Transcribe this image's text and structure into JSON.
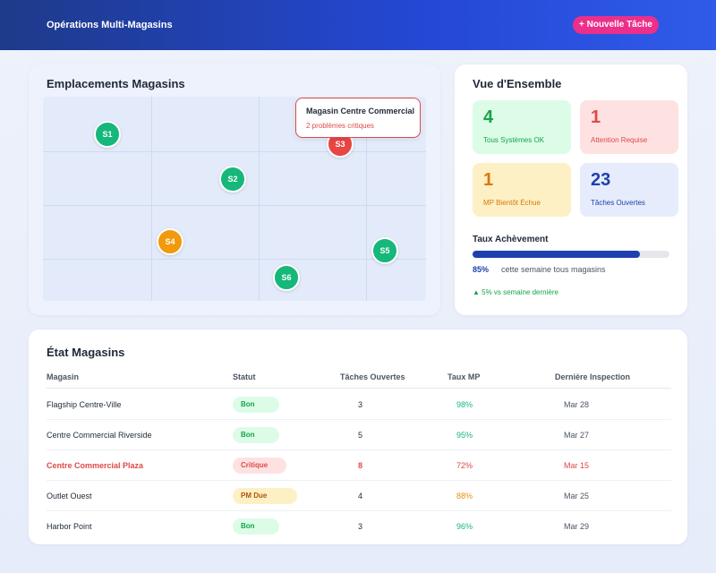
{
  "header": {
    "title": "Opérations Multi-Magasins",
    "new_task_label": "+ Nouvelle Tâche"
  },
  "map": {
    "title": "Emplacements Magasins",
    "stores": [
      {
        "id": "S1",
        "status": "good"
      },
      {
        "id": "S2",
        "status": "good"
      },
      {
        "id": "S3",
        "status": "critical"
      },
      {
        "id": "S4",
        "status": "pm_due"
      },
      {
        "id": "S5",
        "status": "good"
      },
      {
        "id": "S6",
        "status": "good"
      }
    ],
    "tooltip": {
      "title": "Magasin Centre Commercial",
      "subtitle": "2 problèmes critiques"
    }
  },
  "overview": {
    "title": "Vue d'Ensemble",
    "stats": [
      {
        "value": "4",
        "label": "Tous Systèmes OK"
      },
      {
        "value": "1",
        "label": "Attention Requise"
      },
      {
        "value": "1",
        "label": "MP Bientôt Échue"
      },
      {
        "value": "23",
        "label": "Tâches Ouvertes"
      }
    ],
    "completion": {
      "title": "Taux Achèvement",
      "percent_label": "85%",
      "fraction": 0.85,
      "description": "cette semaine tous magasins",
      "trend": "▲ 5% vs semaine dernière"
    }
  },
  "table": {
    "title": "État Magasins",
    "columns": [
      "Magasin",
      "Statut",
      "Tâches Ouvertes",
      "Taux MP",
      "Dernière Inspection"
    ],
    "rows": [
      {
        "name": "Flagship Centre-Ville",
        "status": "Bon",
        "status_type": "good",
        "tasks": "3",
        "pm_rate": "98%",
        "pm_type": "good",
        "inspection": "Mar 28",
        "highlight": false
      },
      {
        "name": "Centre Commercial Riverside",
        "status": "Bon",
        "status_type": "good",
        "tasks": "5",
        "pm_rate": "95%",
        "pm_type": "good",
        "inspection": "Mar 27",
        "highlight": false
      },
      {
        "name": "Centre Commercial Plaza",
        "status": "Critique",
        "status_type": "critical",
        "tasks": "8",
        "pm_rate": "72%",
        "pm_type": "critical",
        "inspection": "Mar 15",
        "highlight": true
      },
      {
        "name": "Outlet Ouest",
        "status": "PM Due",
        "status_type": "pm_due",
        "tasks": "4",
        "pm_rate": "88%",
        "pm_type": "pm_due",
        "inspection": "Mar 25",
        "highlight": false
      },
      {
        "name": "Harbor Point",
        "status": "Bon",
        "status_type": "good",
        "tasks": "3",
        "pm_rate": "96%",
        "pm_type": "good",
        "inspection": "Mar 29",
        "highlight": false
      }
    ]
  },
  "colors": {
    "good": "#16b77a",
    "critical": "#e84545",
    "pm_due": "#f09a0c",
    "accent": "#1e40af",
    "brand_button": "#ec2f8a"
  }
}
